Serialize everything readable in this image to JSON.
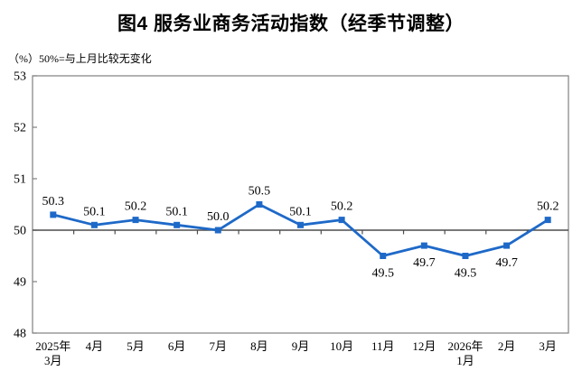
{
  "chart_data": {
    "type": "line",
    "title": "图4 服务业商务活动指数（经季节调整）",
    "unit_note": "（%）50%=与上月比较无变化",
    "categories": [
      "2025年\n3月",
      "4月",
      "5月",
      "6月",
      "7月",
      "8月",
      "9月",
      "10月",
      "11月",
      "12月",
      "2026年\n1月",
      "2月",
      "3月"
    ],
    "values": [
      50.3,
      50.1,
      50.2,
      50.1,
      50.0,
      50.5,
      50.1,
      50.2,
      49.5,
      49.7,
      49.5,
      49.7,
      50.2
    ],
    "data_labels": [
      "50.3",
      "50.1",
      "50.2",
      "50.1",
      "50.0",
      "50.5",
      "50.1",
      "50.2",
      "49.5",
      "49.7",
      "49.5",
      "49.7",
      "50.2"
    ],
    "ylim": [
      48,
      53
    ],
    "yticks": [
      48,
      49,
      50,
      51,
      52,
      53
    ],
    "axis_cross_value": 50,
    "grid": false,
    "legend_position": "none",
    "series_name": "服务业商务活动指数",
    "colors": {
      "series": "#1e69c8",
      "category_axis_line": "#4d4d4d",
      "plot_border": "#808080",
      "text": "#000000"
    }
  }
}
